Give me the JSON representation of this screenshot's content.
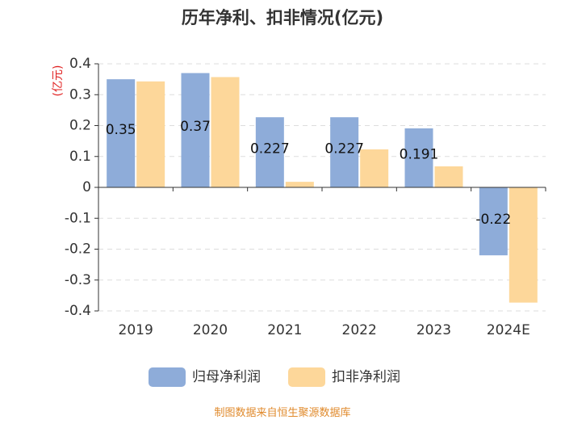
{
  "title": "历年净利、扣非情况(亿元)",
  "source": "制图数据来自恒生聚源数据库",
  "chart_data": {
    "type": "bar",
    "title": "历年净利、扣非情况(亿元)",
    "xlabel": "",
    "ylabel": "(亿元)",
    "ylim": [
      -0.4,
      0.4
    ],
    "yticks": [
      0.4,
      0.3,
      0.2,
      0.1,
      0,
      -0.1,
      -0.2,
      -0.3,
      -0.4
    ],
    "ytick_labels": [
      "0.4",
      "0.3",
      "0.2",
      "0.1",
      "0",
      "-0.1",
      "-0.2",
      "-0.3",
      "-0.4"
    ],
    "grid": true,
    "legend_position": "bottom",
    "categories": [
      "2019",
      "2020",
      "2021",
      "2022",
      "2023",
      "2024E"
    ],
    "series": [
      {
        "name": "归母净利润",
        "color": "#8eacd9",
        "values": [
          0.35,
          0.37,
          0.227,
          0.227,
          0.191,
          -0.22
        ],
        "labels": [
          "0.35",
          "0.37",
          "0.227",
          "0.227",
          "0.191",
          "-0.22"
        ]
      },
      {
        "name": "扣非净利润",
        "color": "#fdd79a",
        "values": [
          0.343,
          0.357,
          0.018,
          0.123,
          0.068,
          -0.373
        ],
        "labels": []
      }
    ]
  }
}
